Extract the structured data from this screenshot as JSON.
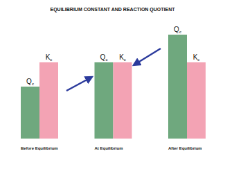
{
  "chart_data": {
    "type": "bar",
    "title": "EQUILIBRIUM CONSTANT AND REACTION QUOTIENT",
    "categories": [
      "Before Equilibrium",
      "At Equilibrium",
      "After Equilibrium"
    ],
    "series": [
      {
        "name": "Qc",
        "color": "#6fa87e",
        "values": [
          75,
          110,
          150
        ]
      },
      {
        "name": "Kc",
        "color": "#f3a3b4",
        "values": [
          110,
          110,
          110
        ]
      }
    ],
    "ylim": [
      0,
      150
    ],
    "tick_labels": false,
    "grid": false
  }
}
